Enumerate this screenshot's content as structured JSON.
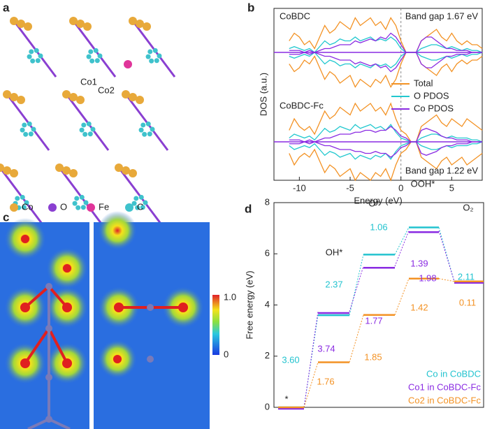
{
  "panel_labels": [
    "a",
    "b",
    "c",
    "d"
  ],
  "panel_a": {
    "atom_labels": [
      "Co1",
      "Co2"
    ],
    "legend": [
      {
        "name": "Co",
        "color": "#e8a93a"
      },
      {
        "name": "O",
        "color": "#8a3fd1"
      },
      {
        "name": "Fe",
        "color": "#e0359a"
      },
      {
        "name": "C",
        "color": "#3fc2cc"
      }
    ]
  },
  "panel_c": {
    "colorbar": {
      "lim": [
        0,
        1
      ],
      "ticks": [
        {
          "value": 1,
          "label": "1.0"
        },
        0
      ]
    }
  },
  "chart_data": [
    {
      "type": "dos",
      "xlabel": "Energy (eV)",
      "ylabel": "DOS (a.u.)",
      "xlim": [
        -12.5,
        8
      ],
      "xticks": [
        -10,
        -5,
        0,
        5
      ],
      "x": [
        -11,
        -10.5,
        -10,
        -9.5,
        -9,
        -8.5,
        -8,
        -7.5,
        -7,
        -6.5,
        -6,
        -5.5,
        -5,
        -4.5,
        -4,
        -3.5,
        -3,
        -2.5,
        -2,
        -1.5,
        -1,
        -0.5,
        0,
        0.5,
        1,
        1.5,
        2,
        2.5,
        3,
        3.5,
        4,
        4.5,
        5,
        5.5,
        6,
        6.5,
        7,
        7.5,
        8
      ],
      "series": [
        {
          "name": "Total",
          "color": "#f39224"
        },
        {
          "name": "O PDOS",
          "color": "#22c8cf"
        },
        {
          "name": "Co PDOS",
          "color": "#8a2be2"
        }
      ],
      "subplots": [
        {
          "label": "CoBDC",
          "annotation": "Band gap 1.67 eV",
          "values": [
            [
              0.3,
              0.5,
              0.4,
              0.2,
              0.3,
              0.1,
              0.4,
              0.7,
              0.5,
              0.6,
              0.8,
              0.7,
              0.6,
              0.9,
              0.7,
              0.8,
              0.9,
              0.7,
              0.8,
              0.6,
              0.9,
              0.7,
              0.3,
              0,
              0,
              0,
              0.3,
              0.4,
              0.5,
              0.6,
              0.4,
              0.3,
              0.5,
              0.3,
              0.2,
              0.3,
              0.2,
              0.2,
              0.1
            ],
            [
              0.1,
              0.15,
              0.1,
              0.05,
              0.1,
              0,
              0.15,
              0.3,
              0.2,
              0.25,
              0.35,
              0.3,
              0.3,
              0.4,
              0.3,
              0.35,
              0.4,
              0.3,
              0.35,
              0.3,
              0.4,
              0.3,
              0.1,
              0,
              0,
              0,
              0.1,
              0.15,
              0.2,
              0.2,
              0.15,
              0.1,
              0.15,
              0.1,
              0.05,
              0.1,
              0.05,
              0.05,
              0
            ],
            [
              0.05,
              0.05,
              0.05,
              0,
              0.05,
              0,
              0.05,
              0.1,
              0.1,
              0.15,
              0.2,
              0.2,
              0.2,
              0.3,
              0.25,
              0.3,
              0.35,
              0.3,
              0.4,
              0.35,
              0.5,
              0.4,
              0.2,
              0,
              0,
              0,
              0.3,
              0.4,
              0.4,
              0.3,
              0.2,
              0.1,
              0.1,
              0.05,
              0.05,
              0.05,
              0,
              0,
              0
            ]
          ]
        },
        {
          "label": "CoBDC-Fc",
          "annotation": "Band gap 1.22 eV",
          "values": [
            [
              0.3,
              0.6,
              0.4,
              0.3,
              0.4,
              0.2,
              0.5,
              0.8,
              0.6,
              0.7,
              0.9,
              0.8,
              0.7,
              1.0,
              0.8,
              0.9,
              1.0,
              0.8,
              0.9,
              0.7,
              1.0,
              0.6,
              0.3,
              0.2,
              0,
              0,
              0.4,
              0.5,
              0.6,
              0.7,
              0.5,
              0.4,
              0.6,
              0.5,
              0.4,
              0.6,
              0.5,
              0.4,
              0.3
            ],
            [
              0.1,
              0.2,
              0.15,
              0.1,
              0.15,
              0.05,
              0.2,
              0.35,
              0.25,
              0.3,
              0.4,
              0.35,
              0.3,
              0.45,
              0.35,
              0.4,
              0.45,
              0.35,
              0.4,
              0.3,
              0.45,
              0.25,
              0.1,
              0.05,
              0,
              0,
              0.1,
              0.15,
              0.2,
              0.2,
              0.15,
              0.1,
              0.15,
              0.1,
              0.1,
              0.1,
              0.05,
              0.05,
              0
            ],
            [
              0.05,
              0.05,
              0.05,
              0,
              0.05,
              0,
              0.05,
              0.1,
              0.1,
              0.15,
              0.2,
              0.2,
              0.2,
              0.25,
              0.25,
              0.3,
              0.3,
              0.25,
              0.3,
              0.3,
              0.4,
              0.3,
              0.15,
              0.1,
              0,
              0,
              0.3,
              0.35,
              0.3,
              0.25,
              0.15,
              0.1,
              0.1,
              0.05,
              0.05,
              0.05,
              0,
              0,
              0
            ]
          ]
        }
      ]
    },
    {
      "type": "energy",
      "ylabel": "Free energy (eV)",
      "ylim": [
        0,
        8
      ],
      "yticks": [
        0,
        2,
        4,
        6,
        8
      ],
      "categories": [
        "*",
        "OH*",
        "O*",
        "OOH*",
        "O₂"
      ],
      "series": [
        {
          "name": "Co in CoBDC",
          "color": "#22c3cf",
          "values": [
            0,
            3.6,
            5.97,
            7.03,
            4.92
          ],
          "step_labels": [
            "3.60",
            "2.37",
            "1.06",
            "2.11"
          ]
        },
        {
          "name": "Co1 in CoBDC-Fc",
          "color": "#8a2be2",
          "values": [
            0,
            3.74,
            5.51,
            6.9,
            4.92
          ],
          "step_labels": [
            "3.74",
            "1.77",
            "1.39",
            "1.98"
          ]
        },
        {
          "name": "Co2 in CoBDC-Fc",
          "color": "#f39224",
          "values": [
            0,
            1.76,
            3.61,
            5.03,
            4.92
          ],
          "step_labels": [
            "1.76",
            "1.85",
            "1.42",
            "0.11"
          ]
        }
      ]
    }
  ]
}
